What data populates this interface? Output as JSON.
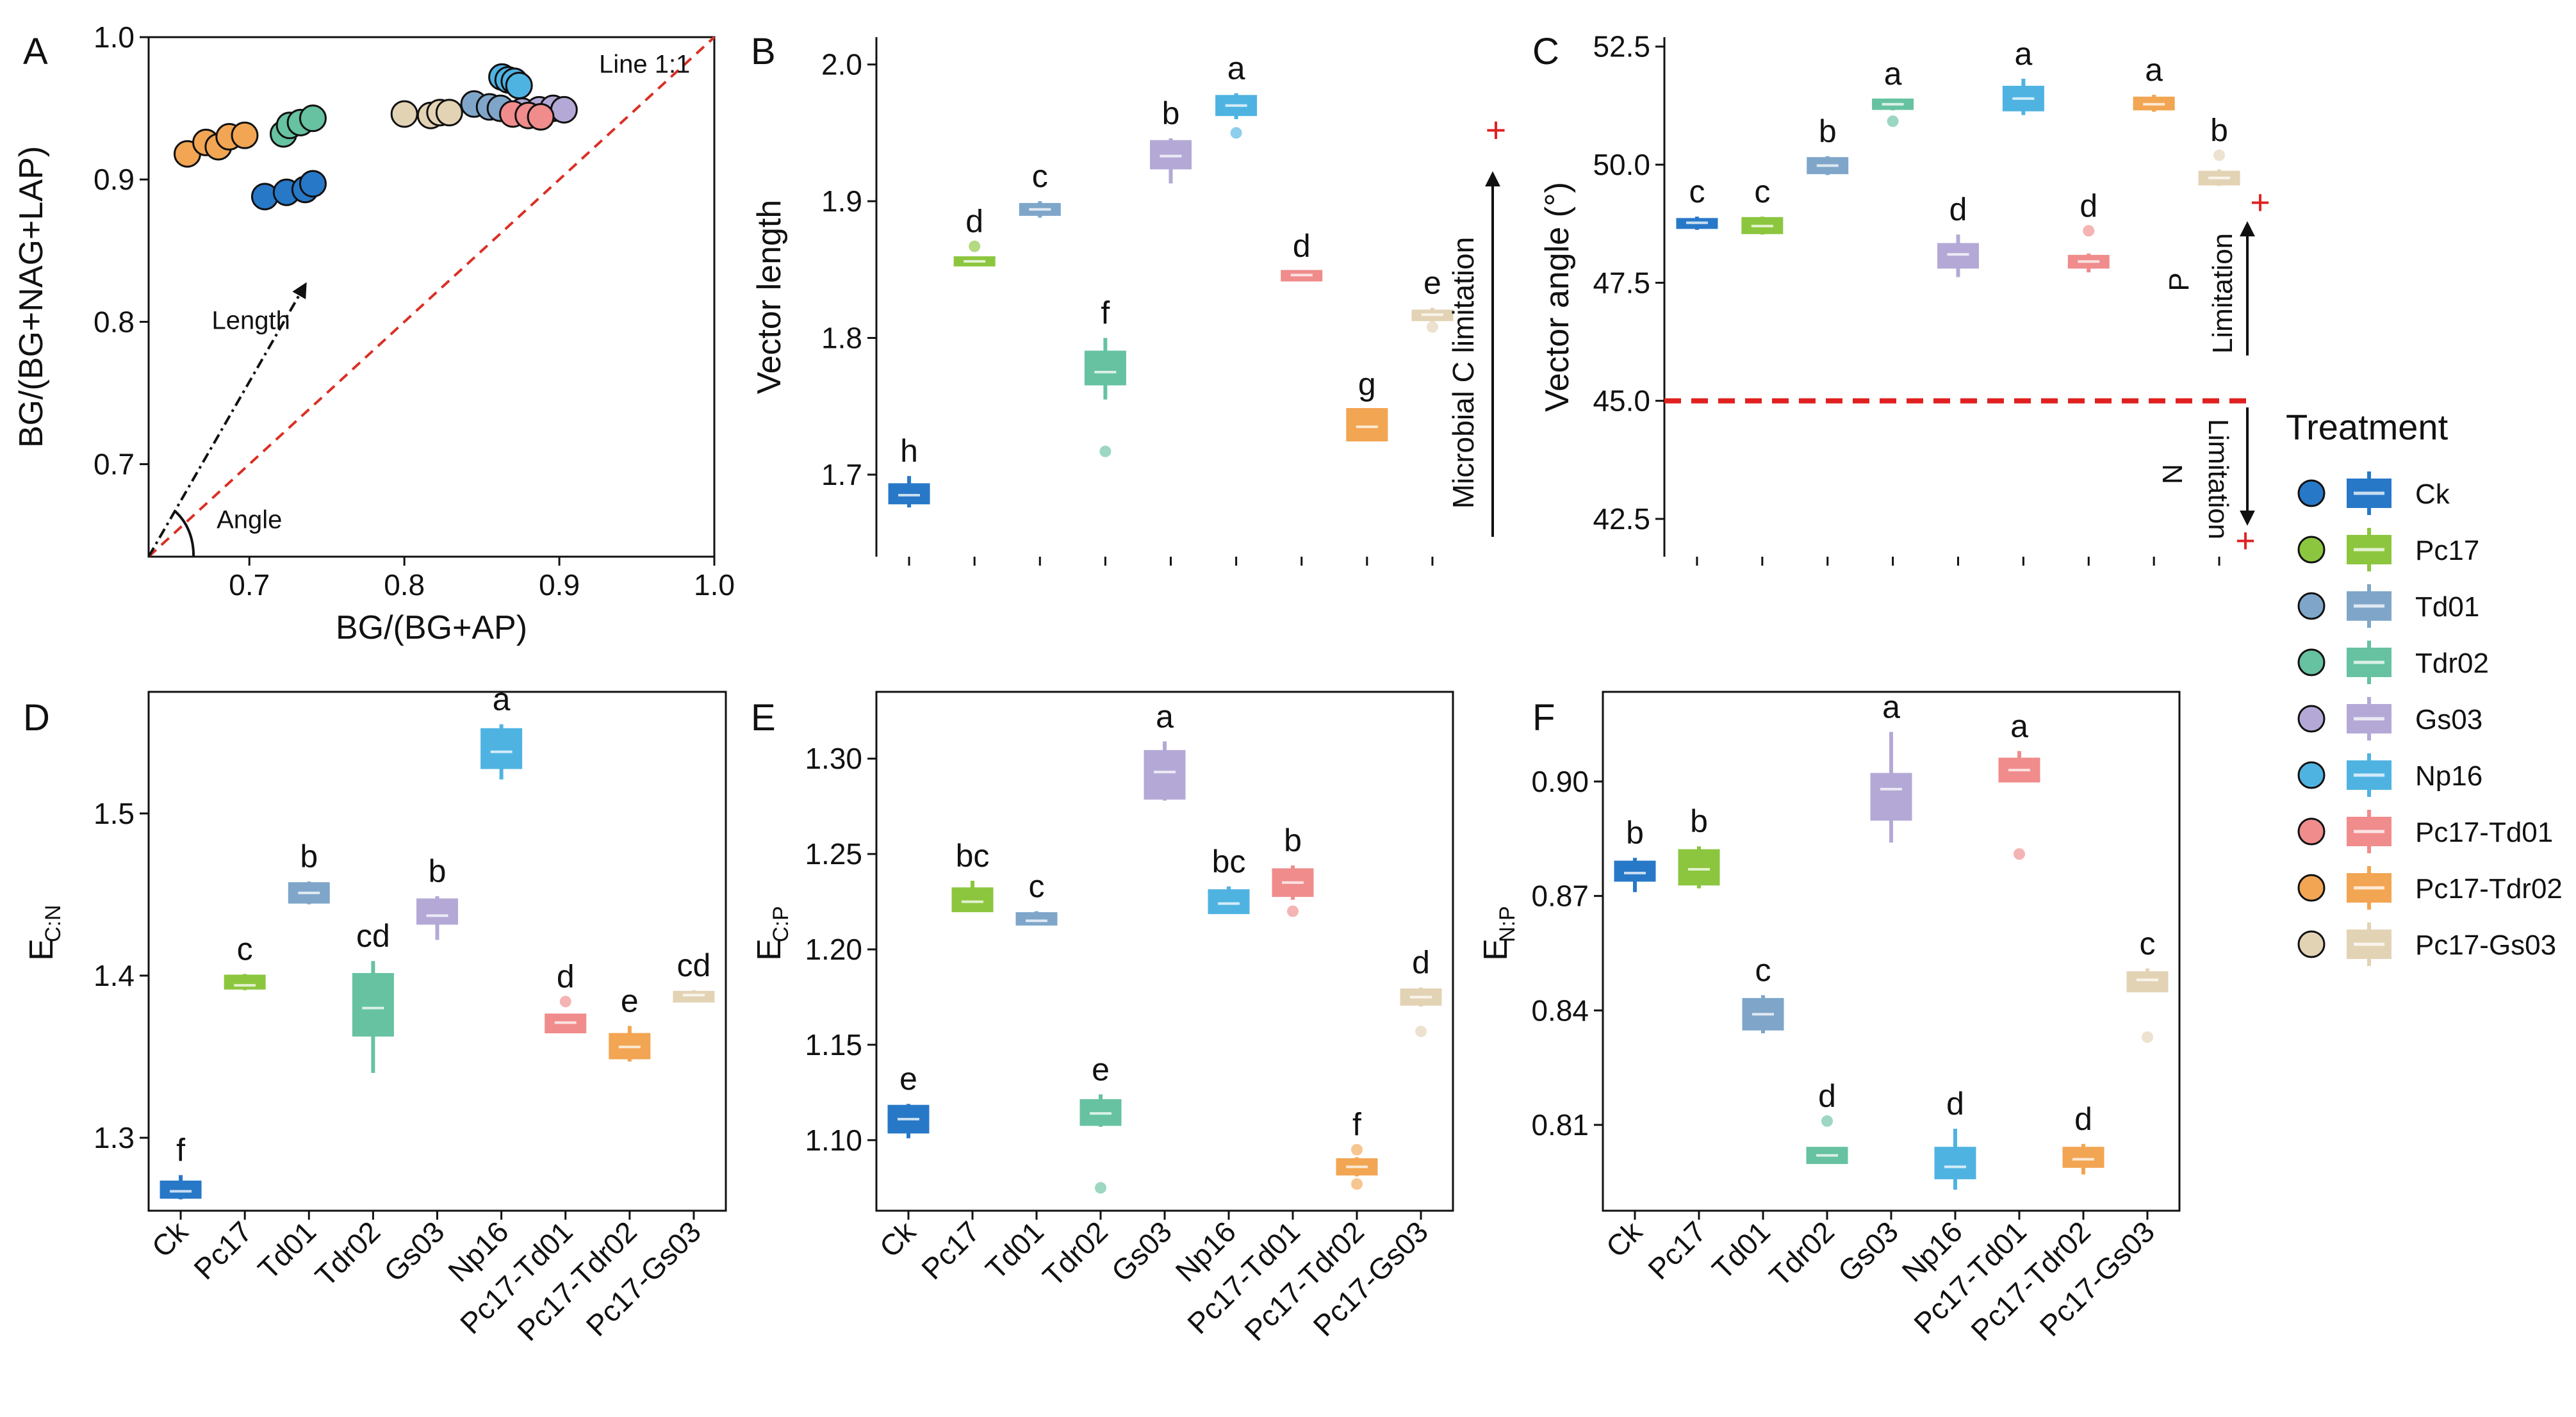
{
  "treatments": [
    "Ck",
    "Pc17",
    "Td01",
    "Tdr02",
    "Gs03",
    "Np16",
    "Pc17-Td01",
    "Pc17-Tdr02",
    "Pc17-Gs03"
  ],
  "colors": [
    "#2878C8",
    "#8CC63E",
    "#7FA6C9",
    "#66C2A0",
    "#B4A9D6",
    "#4FB3E2",
    "#F08C8C",
    "#F2A552",
    "#E3D3B5"
  ],
  "legend": {
    "title": "Treatment"
  },
  "chart_data": [
    {
      "id": "A",
      "type": "scatter",
      "panel_label": "A",
      "xlabel": "BG/(BG+AP)",
      "ylabel": "BG/(BG+NAG+LAP)",
      "xlim": [
        0.635,
        1.0
      ],
      "ylim": [
        0.635,
        1.0
      ],
      "xticks": [
        0.7,
        0.8,
        0.9,
        1.0
      ],
      "yticks": [
        0.7,
        0.8,
        0.9,
        1.0
      ],
      "xtick_labels": [
        "0.7",
        "0.8",
        "0.9",
        "1.0"
      ],
      "ytick_labels": [
        "0.7",
        "0.8",
        "0.9",
        "1.0"
      ],
      "annotations": {
        "line": "Line 1:1",
        "length": "Length",
        "angle": "Angle"
      },
      "points": [
        {
          "t": 0,
          "x": 0.71,
          "y": 0.888
        },
        {
          "t": 0,
          "x": 0.724,
          "y": 0.891
        },
        {
          "t": 0,
          "x": 0.736,
          "y": 0.893
        },
        {
          "t": 0,
          "x": 0.741,
          "y": 0.897
        },
        {
          "t": 3,
          "x": 0.722,
          "y": 0.932
        },
        {
          "t": 3,
          "x": 0.726,
          "y": 0.938
        },
        {
          "t": 3,
          "x": 0.733,
          "y": 0.94
        },
        {
          "t": 3,
          "x": 0.741,
          "y": 0.943
        },
        {
          "t": 7,
          "x": 0.66,
          "y": 0.918
        },
        {
          "t": 7,
          "x": 0.672,
          "y": 0.926
        },
        {
          "t": 7,
          "x": 0.68,
          "y": 0.923
        },
        {
          "t": 7,
          "x": 0.687,
          "y": 0.93
        },
        {
          "t": 7,
          "x": 0.697,
          "y": 0.931
        },
        {
          "t": 8,
          "x": 0.8,
          "y": 0.946
        },
        {
          "t": 8,
          "x": 0.817,
          "y": 0.945
        },
        {
          "t": 8,
          "x": 0.823,
          "y": 0.947
        },
        {
          "t": 8,
          "x": 0.829,
          "y": 0.947
        },
        {
          "t": 4,
          "x": 0.876,
          "y": 0.948
        },
        {
          "t": 4,
          "x": 0.887,
          "y": 0.949
        },
        {
          "t": 4,
          "x": 0.896,
          "y": 0.95
        },
        {
          "t": 4,
          "x": 0.903,
          "y": 0.949
        },
        {
          "t": 2,
          "x": 0.845,
          "y": 0.953
        },
        {
          "t": 2,
          "x": 0.855,
          "y": 0.951
        },
        {
          "t": 2,
          "x": 0.862,
          "y": 0.95
        },
        {
          "t": 6,
          "x": 0.87,
          "y": 0.946
        },
        {
          "t": 6,
          "x": 0.88,
          "y": 0.945
        },
        {
          "t": 6,
          "x": 0.888,
          "y": 0.944
        },
        {
          "t": 5,
          "x": 0.863,
          "y": 0.972
        },
        {
          "t": 5,
          "x": 0.867,
          "y": 0.97
        },
        {
          "t": 5,
          "x": 0.871,
          "y": 0.969
        },
        {
          "t": 5,
          "x": 0.874,
          "y": 0.966
        }
      ]
    },
    {
      "id": "B",
      "type": "box",
      "panel_label": "B",
      "ylabel": "Vector length",
      "ylim": [
        1.64,
        2.02
      ],
      "yticks": [
        1.7,
        1.8,
        1.9,
        2.0
      ],
      "ytick_labels": [
        "1.7",
        "1.8",
        "1.9",
        "2.0"
      ],
      "show_xlabels": false,
      "side_label": "Microbial C limitation",
      "plus": "+",
      "boxes": [
        {
          "t": 0,
          "min": 1.676,
          "q1": 1.679,
          "med": 1.685,
          "q3": 1.693,
          "max": 1.699,
          "out": [],
          "letter": "h"
        },
        {
          "t": 1,
          "min": 1.853,
          "q1": 1.853,
          "med": 1.856,
          "q3": 1.859,
          "max": 1.859,
          "out": [
            1.867
          ],
          "letter": "d"
        },
        {
          "t": 2,
          "min": 1.888,
          "q1": 1.89,
          "med": 1.894,
          "q3": 1.898,
          "max": 1.9,
          "out": [],
          "letter": "c"
        },
        {
          "t": 3,
          "min": 1.755,
          "q1": 1.766,
          "med": 1.775,
          "q3": 1.79,
          "max": 1.8,
          "out": [
            1.717
          ],
          "letter": "f"
        },
        {
          "t": 4,
          "min": 1.913,
          "q1": 1.924,
          "med": 1.933,
          "q3": 1.944,
          "max": 1.946,
          "out": [],
          "letter": "b"
        },
        {
          "t": 5,
          "min": 1.96,
          "q1": 1.963,
          "med": 1.97,
          "q3": 1.977,
          "max": 1.979,
          "out": [
            1.95
          ],
          "letter": "a"
        },
        {
          "t": 6,
          "min": 1.842,
          "q1": 1.842,
          "med": 1.846,
          "q3": 1.849,
          "max": 1.849,
          "out": [],
          "letter": "d"
        },
        {
          "t": 7,
          "min": 1.725,
          "q1": 1.725,
          "med": 1.735,
          "q3": 1.748,
          "max": 1.748,
          "out": [],
          "letter": "g"
        },
        {
          "t": 8,
          "min": 1.812,
          "q1": 1.813,
          "med": 1.817,
          "q3": 1.82,
          "max": 1.822,
          "out": [
            1.808
          ],
          "letter": "e"
        }
      ]
    },
    {
      "id": "C",
      "type": "box",
      "panel_label": "C",
      "ylabel": "Vector angle (°)",
      "ylim": [
        41.7,
        52.7
      ],
      "yticks": [
        42.5,
        45.0,
        47.5,
        50.0,
        52.5
      ],
      "ytick_labels": [
        "42.5",
        "45.0",
        "47.5",
        "50.0",
        "52.5"
      ],
      "show_xlabels": false,
      "ref_line": 45.0,
      "p_label": "P",
      "n_label": "N",
      "lim_label": "Limitation",
      "plus": "+",
      "boxes": [
        {
          "t": 0,
          "min": 48.62,
          "q1": 48.66,
          "med": 48.77,
          "q3": 48.85,
          "max": 48.9,
          "out": [],
          "letter": "c"
        },
        {
          "t": 1,
          "min": 48.52,
          "q1": 48.55,
          "med": 48.7,
          "q3": 48.87,
          "max": 48.9,
          "out": [],
          "letter": "c"
        },
        {
          "t": 2,
          "min": 49.78,
          "q1": 49.82,
          "med": 49.98,
          "q3": 50.14,
          "max": 50.18,
          "out": [],
          "letter": "b"
        },
        {
          "t": 3,
          "min": 51.15,
          "q1": 51.18,
          "med": 51.28,
          "q3": 51.38,
          "max": 51.4,
          "out": [
            50.92
          ],
          "letter": "a"
        },
        {
          "t": 4,
          "min": 47.62,
          "q1": 47.82,
          "med": 48.1,
          "q3": 48.32,
          "max": 48.52,
          "out": [],
          "letter": "d"
        },
        {
          "t": 5,
          "min": 51.05,
          "q1": 51.15,
          "med": 51.4,
          "q3": 51.65,
          "max": 51.82,
          "out": [],
          "letter": "a"
        },
        {
          "t": 6,
          "min": 47.72,
          "q1": 47.82,
          "med": 47.95,
          "q3": 48.07,
          "max": 48.12,
          "out": [
            48.6
          ],
          "letter": "d"
        },
        {
          "t": 7,
          "min": 51.12,
          "q1": 51.17,
          "med": 51.28,
          "q3": 51.42,
          "max": 51.48,
          "out": [],
          "letter": "a"
        },
        {
          "t": 8,
          "min": 49.55,
          "q1": 49.58,
          "med": 49.72,
          "q3": 49.85,
          "max": 49.9,
          "out": [
            50.2
          ],
          "letter": "b"
        }
      ]
    },
    {
      "id": "D",
      "type": "box",
      "panel_label": "D",
      "ylabel": "E",
      "ylabel_sub": "C:N",
      "ylim": [
        1.255,
        1.575
      ],
      "yticks": [
        1.3,
        1.4,
        1.5
      ],
      "ytick_labels": [
        "1.3",
        "1.4",
        "1.5"
      ],
      "show_xlabels": true,
      "boxes": [
        {
          "t": 0,
          "min": 1.262,
          "q1": 1.263,
          "med": 1.267,
          "q3": 1.273,
          "max": 1.277,
          "out": [],
          "letter": "f"
        },
        {
          "t": 1,
          "min": 1.391,
          "q1": 1.392,
          "med": 1.394,
          "q3": 1.4,
          "max": 1.401,
          "out": [],
          "letter": "c"
        },
        {
          "t": 2,
          "min": 1.444,
          "q1": 1.445,
          "med": 1.451,
          "q3": 1.457,
          "max": 1.458,
          "out": [],
          "letter": "b"
        },
        {
          "t": 3,
          "min": 1.34,
          "q1": 1.363,
          "med": 1.38,
          "q3": 1.401,
          "max": 1.409,
          "out": [],
          "letter": "cd"
        },
        {
          "t": 4,
          "min": 1.422,
          "q1": 1.432,
          "med": 1.437,
          "q3": 1.447,
          "max": 1.449,
          "out": [],
          "letter": "b"
        },
        {
          "t": 5,
          "min": 1.521,
          "q1": 1.528,
          "med": 1.538,
          "q3": 1.552,
          "max": 1.555,
          "out": [],
          "letter": "a"
        },
        {
          "t": 6,
          "min": 1.365,
          "q1": 1.365,
          "med": 1.371,
          "q3": 1.376,
          "max": 1.376,
          "out": [
            1.384
          ],
          "letter": "d"
        },
        {
          "t": 7,
          "min": 1.347,
          "q1": 1.349,
          "med": 1.356,
          "q3": 1.364,
          "max": 1.369,
          "out": [],
          "letter": "e"
        },
        {
          "t": 8,
          "min": 1.384,
          "q1": 1.384,
          "med": 1.388,
          "q3": 1.39,
          "max": 1.391,
          "out": [],
          "letter": "cd"
        }
      ]
    },
    {
      "id": "E",
      "type": "box",
      "panel_label": "E",
      "ylabel": "E",
      "ylabel_sub": "C:P",
      "ylim": [
        1.063,
        1.335
      ],
      "yticks": [
        1.1,
        1.15,
        1.2,
        1.25,
        1.3
      ],
      "ytick_labels": [
        "1.10",
        "1.15",
        "1.20",
        "1.25",
        "1.30"
      ],
      "show_xlabels": true,
      "boxes": [
        {
          "t": 0,
          "min": 1.101,
          "q1": 1.104,
          "med": 1.111,
          "q3": 1.118,
          "max": 1.119,
          "out": [],
          "letter": "e"
        },
        {
          "t": 1,
          "min": 1.22,
          "q1": 1.22,
          "med": 1.225,
          "q3": 1.232,
          "max": 1.236,
          "out": [],
          "letter": "bc"
        },
        {
          "t": 2,
          "min": 1.213,
          "q1": 1.213,
          "med": 1.215,
          "q3": 1.219,
          "max": 1.22,
          "out": [],
          "letter": "c"
        },
        {
          "t": 3,
          "min": 1.107,
          "q1": 1.108,
          "med": 1.114,
          "q3": 1.121,
          "max": 1.124,
          "out": [
            1.075
          ],
          "letter": "e"
        },
        {
          "t": 4,
          "min": 1.278,
          "q1": 1.279,
          "med": 1.293,
          "q3": 1.304,
          "max": 1.309,
          "out": [],
          "letter": "a"
        },
        {
          "t": 5,
          "min": 1.219,
          "q1": 1.219,
          "med": 1.224,
          "q3": 1.231,
          "max": 1.233,
          "out": [],
          "letter": "bc"
        },
        {
          "t": 6,
          "min": 1.226,
          "q1": 1.228,
          "med": 1.235,
          "q3": 1.242,
          "max": 1.244,
          "out": [
            1.22
          ],
          "letter": "b"
        },
        {
          "t": 7,
          "min": 1.081,
          "q1": 1.082,
          "med": 1.086,
          "q3": 1.09,
          "max": 1.091,
          "out": [
            1.077,
            1.095
          ],
          "letter": "f"
        },
        {
          "t": 8,
          "min": 1.17,
          "q1": 1.171,
          "med": 1.175,
          "q3": 1.179,
          "max": 1.18,
          "out": [
            1.157
          ],
          "letter": "d"
        }
      ]
    },
    {
      "id": "F",
      "type": "box",
      "panel_label": "F",
      "ylabel": "E",
      "ylabel_sub": "N:P",
      "ylim": [
        0.7875,
        0.9235
      ],
      "yticks": [
        0.81,
        0.84,
        0.87,
        0.9
      ],
      "ytick_labels": [
        "0.81",
        "0.84",
        "0.87",
        "0.90"
      ],
      "show_xlabels": true,
      "boxes": [
        {
          "t": 0,
          "min": 0.871,
          "q1": 0.874,
          "med": 0.876,
          "q3": 0.879,
          "max": 0.88,
          "out": [],
          "letter": "b"
        },
        {
          "t": 1,
          "min": 0.872,
          "q1": 0.873,
          "med": 0.877,
          "q3": 0.882,
          "max": 0.883,
          "out": [],
          "letter": "b"
        },
        {
          "t": 2,
          "min": 0.834,
          "q1": 0.835,
          "med": 0.839,
          "q3": 0.843,
          "max": 0.844,
          "out": [],
          "letter": "c"
        },
        {
          "t": 3,
          "min": 0.8,
          "q1": 0.8,
          "med": 0.802,
          "q3": 0.804,
          "max": 0.804,
          "out": [
            0.811
          ],
          "letter": "d"
        },
        {
          "t": 4,
          "min": 0.884,
          "q1": 0.89,
          "med": 0.898,
          "q3": 0.902,
          "max": 0.913,
          "out": [],
          "letter": "a"
        },
        {
          "t": 5,
          "min": 0.793,
          "q1": 0.796,
          "med": 0.799,
          "q3": 0.804,
          "max": 0.809,
          "out": [],
          "letter": "d"
        },
        {
          "t": 6,
          "min": 0.9,
          "q1": 0.9,
          "med": 0.903,
          "q3": 0.906,
          "max": 0.908,
          "out": [
            0.881
          ],
          "letter": "a"
        },
        {
          "t": 7,
          "min": 0.797,
          "q1": 0.799,
          "med": 0.801,
          "q3": 0.804,
          "max": 0.805,
          "out": [],
          "letter": "d"
        },
        {
          "t": 8,
          "min": 0.845,
          "q1": 0.845,
          "med": 0.848,
          "q3": 0.85,
          "max": 0.851,
          "out": [
            0.833
          ],
          "letter": "c"
        }
      ]
    }
  ]
}
